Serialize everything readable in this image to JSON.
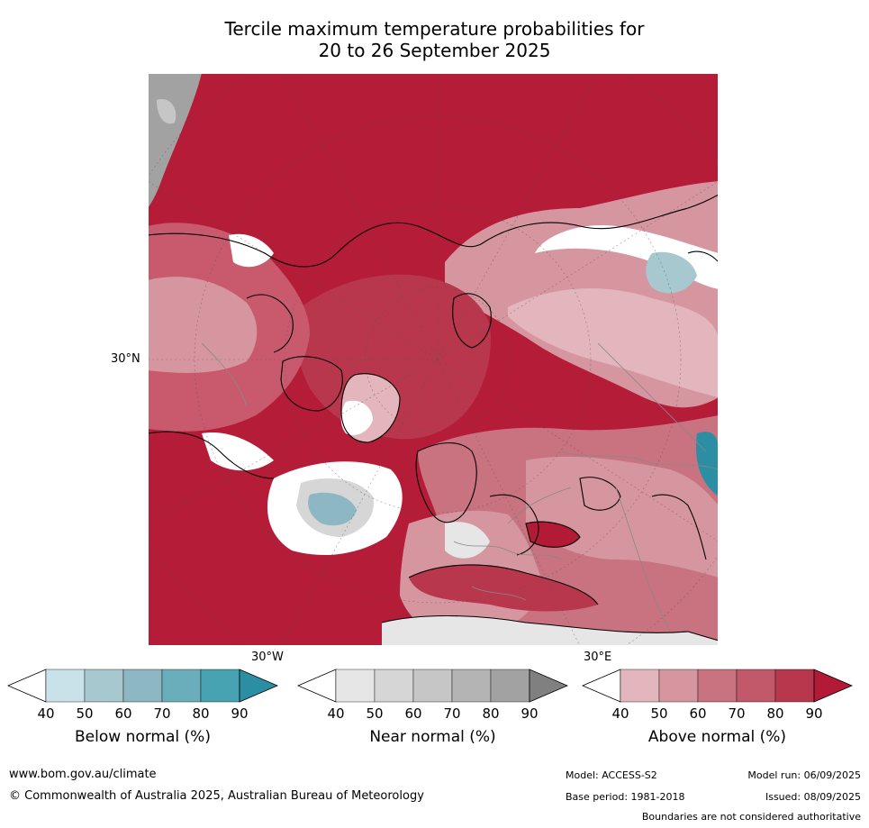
{
  "title": {
    "line1": "Tercile maximum temperature probabilities for",
    "line2": "20 to 26 September 2025"
  },
  "map": {
    "projection": "north-polar-stereographic",
    "lat_label": "30°N",
    "lon_labels": [
      "30°W",
      "30°E"
    ],
    "dominant_category": "above-normal",
    "colors": {
      "ocean_base": "#b51c38",
      "land_base": "#c95a6d"
    }
  },
  "colorbars": [
    {
      "name": "below",
      "label": "Below normal (%)",
      "ticks": [
        "40",
        "50",
        "60",
        "70",
        "80",
        "90"
      ],
      "colors": [
        "#ffffff",
        "#c9e1e8",
        "#a8c8cf",
        "#8cb7c3",
        "#6aaebb",
        "#47a2b1",
        "#2b8ea2"
      ]
    },
    {
      "name": "near",
      "label": "Near normal (%)",
      "ticks": [
        "40",
        "50",
        "60",
        "70",
        "80",
        "90"
      ],
      "colors": [
        "#ffffff",
        "#e6e6e6",
        "#d6d6d6",
        "#c6c6c6",
        "#b4b4b4",
        "#a2a2a2",
        "#808080"
      ]
    },
    {
      "name": "above",
      "label": "Above normal (%)",
      "ticks": [
        "40",
        "50",
        "60",
        "70",
        "80",
        "90"
      ],
      "colors": [
        "#ffffff",
        "#e2b6bc",
        "#d6969f",
        "#c97380",
        "#c1596a",
        "#b8374d",
        "#b21a35"
      ]
    }
  ],
  "footer": {
    "url": "www.bom.gov.au/climate",
    "copyright": "© Commonwealth of Australia 2025, Australian Bureau of Meteorology",
    "model": "Model: ACCESS-S2",
    "model_run": "Model run: 06/09/2025",
    "base_period": "Base period: 1981-2018",
    "issued": "Issued: 08/09/2025",
    "disclaimer": "Boundaries are not considered authoritative"
  }
}
